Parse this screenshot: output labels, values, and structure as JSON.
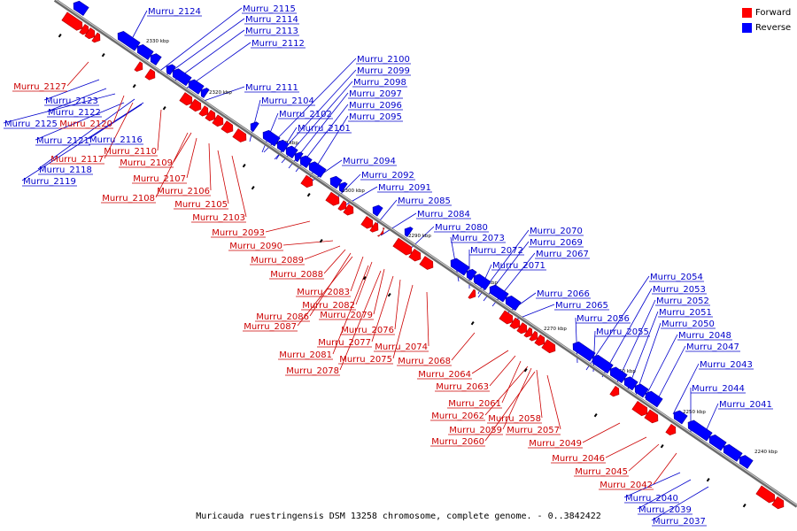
{
  "legend": {
    "forward_label": "Forward",
    "reverse_label": "Reverse",
    "forward_color": "#ff0000",
    "reverse_color": "#0000ff"
  },
  "caption": "Muricauda ruestringensis DSM 13258 chromosome, complete genome. - 0..3842422",
  "ticks": [
    "2330 kbp",
    "2320 kbp",
    "2310 kbp",
    "2300 kbp",
    "2290 kbp",
    "2280 kbp",
    "2270 kbp",
    "2260 kbp",
    "2250 kbp",
    "2240 kbp"
  ],
  "reverse_genes": [
    "Murru_2124",
    "Murru_2115",
    "Murru_2114",
    "Murru_2113",
    "Murru_2112",
    "Murru_2111",
    "Murru_2100",
    "Murru_2099",
    "Murru_2098",
    "Murru_2097",
    "Murru_2096",
    "Murru_2095",
    "Murru_2104",
    "Murru_2102",
    "Murru_2101",
    "Murru_2094",
    "Murru_2092",
    "Murru_2091",
    "Murru_2085",
    "Murru_2084",
    "Murru_2080",
    "Murru_2073",
    "Murru_2070",
    "Murru_2069",
    "Murru_2072",
    "Murru_2067",
    "Murru_2071",
    "Murru_2066",
    "Murru_2065",
    "Murru_2056",
    "Murru_2055",
    "Murru_2054",
    "Murru_2053",
    "Murru_2052",
    "Murru_2051",
    "Murru_2050",
    "Murru_2048",
    "Murru_2047",
    "Murru_2043",
    "Murru_2044",
    "Murru_2041",
    "Murru_2123",
    "Murru_2122",
    "Murru_2125",
    "Murru_2121",
    "Murru_2116",
    "Murru_2118",
    "Murru_2119",
    "Murru_2040",
    "Murru_2039",
    "Murru_2037"
  ],
  "forward_genes": [
    "Murru_2127",
    "Murru_2120",
    "Murru_2110",
    "Murru_2109",
    "Murru_2117",
    "Murru_2107",
    "Murru_2106",
    "Murru_2108",
    "Murru_2105",
    "Murru_2103",
    "Murru_2093",
    "Murru_2090",
    "Murru_2089",
    "Murru_2088",
    "Murru_2083",
    "Murru_2082",
    "Murru_2086",
    "Murru_2079",
    "Murru_2087",
    "Murru_2076",
    "Murru_2077",
    "Murru_2081",
    "Murru_2074",
    "Murru_2075",
    "Murru_2078",
    "Murru_2068",
    "Murru_2064",
    "Murru_2063",
    "Murru_2061",
    "Murru_2062",
    "Murru_2058",
    "Murru_2059",
    "Murru_2057",
    "Murru_2060",
    "Murru_2049",
    "Murru_2046",
    "Murru_2045",
    "Murru_2042"
  ]
}
